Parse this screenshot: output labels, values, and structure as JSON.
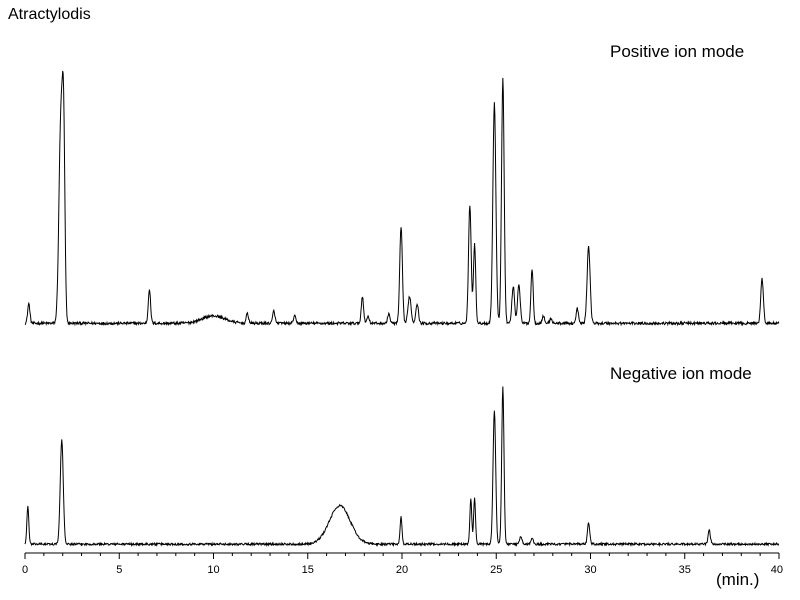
{
  "chart_data": {
    "type": "line",
    "title": "Atractylodis",
    "xlabel": "(min.)",
    "ylabel": "",
    "xlim": [
      0,
      40
    ],
    "ylim": [
      0,
      100
    ],
    "x_ticks": [
      0,
      5,
      10,
      15,
      20,
      25,
      30,
      35,
      40
    ],
    "grid": false,
    "line_color": "#000000",
    "series": [
      {
        "name": "Positive ion mode",
        "baseline": 1.5,
        "peaks": [
          {
            "t": 0.2,
            "h": 8,
            "w": 0.06
          },
          {
            "t": 1.9,
            "h": 81,
            "w": 0.1
          },
          {
            "t": 2.05,
            "h": 68,
            "w": 0.07
          },
          {
            "t": 6.6,
            "h": 14,
            "w": 0.06
          },
          {
            "t": 10.0,
            "h": 3,
            "w": 0.6
          },
          {
            "t": 11.8,
            "h": 4,
            "w": 0.06
          },
          {
            "t": 13.2,
            "h": 5,
            "w": 0.06
          },
          {
            "t": 14.3,
            "h": 3,
            "w": 0.06
          },
          {
            "t": 17.9,
            "h": 11,
            "w": 0.06
          },
          {
            "t": 18.2,
            "h": 3,
            "w": 0.06
          },
          {
            "t": 19.3,
            "h": 4,
            "w": 0.06
          },
          {
            "t": 19.95,
            "h": 39,
            "w": 0.07
          },
          {
            "t": 20.4,
            "h": 11,
            "w": 0.08
          },
          {
            "t": 20.8,
            "h": 8,
            "w": 0.07
          },
          {
            "t": 23.6,
            "h": 48,
            "w": 0.07
          },
          {
            "t": 23.85,
            "h": 32,
            "w": 0.06
          },
          {
            "t": 24.9,
            "h": 89,
            "w": 0.08
          },
          {
            "t": 25.35,
            "h": 99,
            "w": 0.07
          },
          {
            "t": 25.9,
            "h": 15,
            "w": 0.07
          },
          {
            "t": 26.2,
            "h": 16,
            "w": 0.07
          },
          {
            "t": 26.9,
            "h": 22,
            "w": 0.06
          },
          {
            "t": 27.5,
            "h": 3,
            "w": 0.06
          },
          {
            "t": 27.9,
            "h": 2,
            "w": 0.06
          },
          {
            "t": 29.3,
            "h": 6,
            "w": 0.06
          },
          {
            "t": 29.9,
            "h": 31,
            "w": 0.08
          },
          {
            "t": 39.1,
            "h": 18,
            "w": 0.07
          }
        ]
      },
      {
        "name": "Negative ion mode",
        "baseline": 1.5,
        "peaks": [
          {
            "t": 0.15,
            "h": 20,
            "w": 0.05
          },
          {
            "t": 1.95,
            "h": 54,
            "w": 0.08
          },
          {
            "t": 16.7,
            "h": 20,
            "w": 0.55
          },
          {
            "t": 19.95,
            "h": 14,
            "w": 0.05
          },
          {
            "t": 23.65,
            "h": 24,
            "w": 0.05
          },
          {
            "t": 23.85,
            "h": 24,
            "w": 0.05
          },
          {
            "t": 24.9,
            "h": 70,
            "w": 0.07
          },
          {
            "t": 25.35,
            "h": 82,
            "w": 0.06
          },
          {
            "t": 26.3,
            "h": 4,
            "w": 0.06
          },
          {
            "t": 26.9,
            "h": 3,
            "w": 0.06
          },
          {
            "t": 29.9,
            "h": 11,
            "w": 0.06
          },
          {
            "t": 36.3,
            "h": 7,
            "w": 0.06
          }
        ]
      }
    ]
  }
}
